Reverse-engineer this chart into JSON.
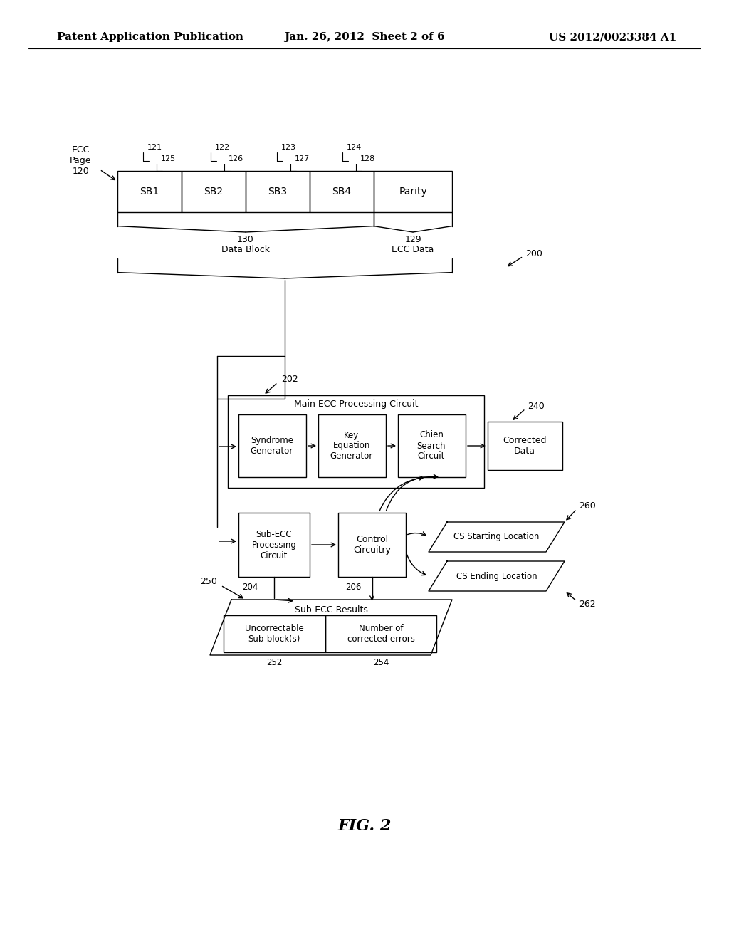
{
  "header_left": "Patent Application Publication",
  "header_mid": "Jan. 26, 2012  Sheet 2 of 6",
  "header_right": "US 2012/0023384 A1",
  "fig_label": "FIG. 2",
  "bg_color": "#ffffff",
  "lc": "#000000"
}
